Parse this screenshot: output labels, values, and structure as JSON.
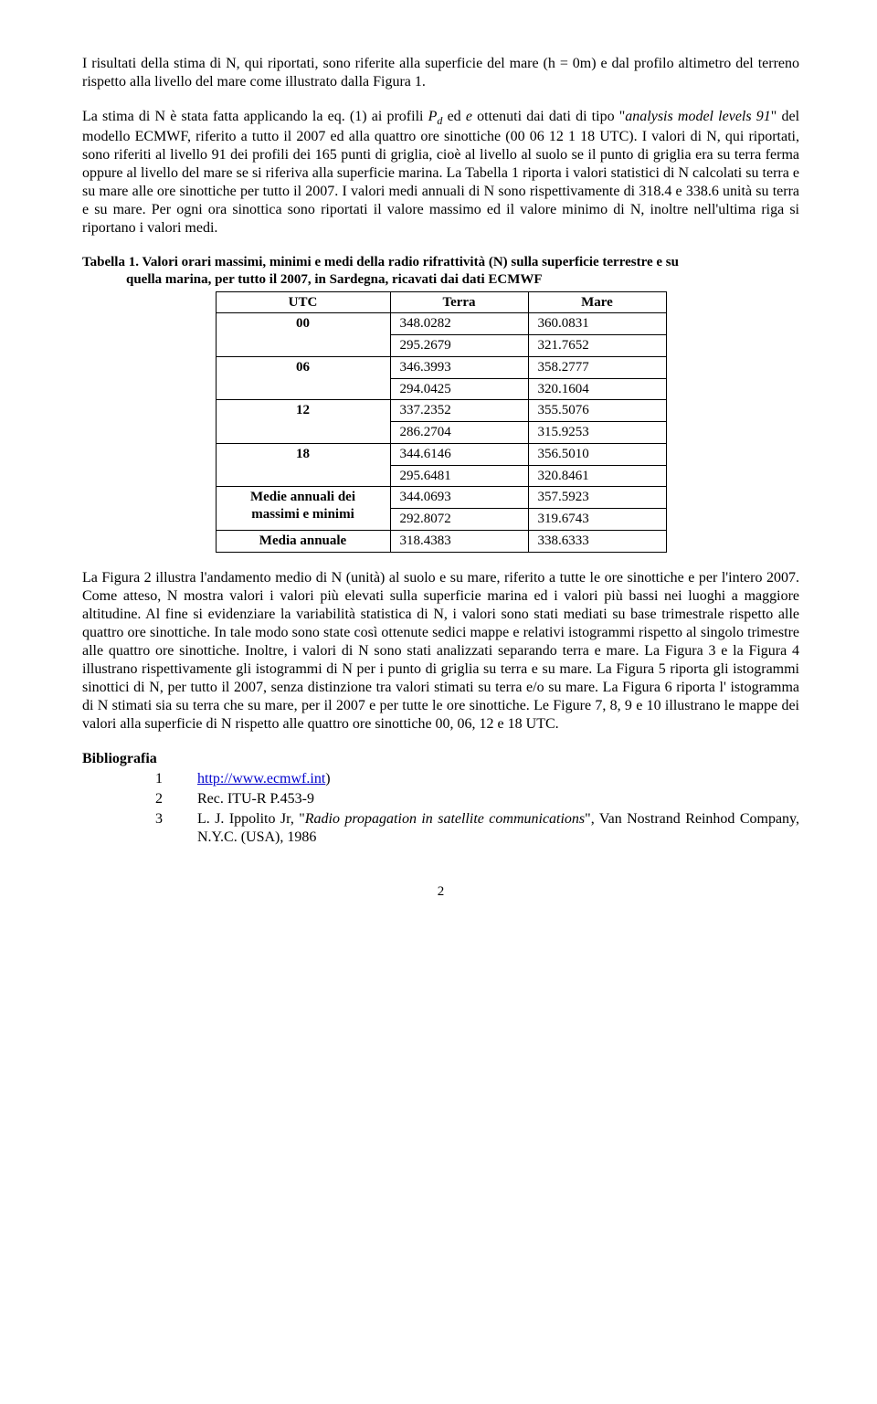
{
  "para1_a": "I risultati della stima di N, qui riportati, sono riferite alla superficie del mare (h = 0m) e dal profilo altimetro del terreno rispetto alla livello del mare come illustrato dalla Figura 1.",
  "para2_a": "La stima di N è stata fatta applicando la eq. (1) ai profili ",
  "para2_pd_p": "P",
  "para2_pd_d": "d",
  "para2_b": " ed ",
  "para2_e": "e",
  "para2_c": " ottenuti dai dati di tipo \"",
  "para2_it1": "analysis model levels 91",
  "para2_d": "\" del modello ECMWF, riferito a tutto il 2007 ed alla quattro ore sinottiche (00 06 12 1 18 UTC). I valori di N, qui riportati, sono riferiti al livello 91 dei profili dei 165 punti di griglia, cioè al livello al suolo se il punto di griglia era su terra ferma oppure al livello del mare se si riferiva alla superficie marina. La Tabella 1 riporta i valori statistici di N calcolati su terra e su mare alle ore sinottiche per tutto il 2007. I valori medi annuali di N sono rispettivamente di 318.4 e 338.6 unità su terra e su mare. Per ogni ora sinottica sono riportati il valore massimo ed il valore minimo di N, inoltre nell'ultima riga si riportano i valori medi.",
  "table_caption_line1": "Tabella 1. Valori orari massimi, minimi e medi della radio rifrattività (N) sulla superficie terrestre e su",
  "table_caption_line2": "quella marina, per  tutto il 2007, in Sardegna, ricavati dai dati ECMWF",
  "table": {
    "headers": {
      "utc": "UTC",
      "terra": "Terra",
      "mare": "Mare"
    },
    "rows": [
      {
        "utc": "00",
        "terra_max": "348.0282",
        "terra_min": "295.2679",
        "mare_max": "360.0831",
        "mare_min": "321.7652"
      },
      {
        "utc": "06",
        "terra_max": "346.3993",
        "terra_min": "294.0425",
        "mare_max": "358.2777",
        "mare_min": "320.1604"
      },
      {
        "utc": "12",
        "terra_max": "337.2352",
        "terra_min": "286.2704",
        "mare_max": "355.5076",
        "mare_min": "315.9253"
      },
      {
        "utc": "18",
        "terra_max": "344.6146",
        "terra_min": "295.6481",
        "mare_max": "356.5010",
        "mare_min": "320.8461"
      }
    ],
    "medie_label_a": "Medie annuali dei",
    "medie_label_b": "massimi e minimi",
    "medie_terra_max": "344.0693",
    "medie_terra_min": "292.8072",
    "medie_mare_max": "357.5923",
    "medie_mare_min": "319.6743",
    "media_annuale_label": "Media annuale",
    "media_annuale_terra": "318.4383",
    "media_annuale_mare": "338.6333"
  },
  "para3": "La Figura 2 illustra l'andamento medio di N (unità) al suolo e su mare,  riferito a tutte le ore sinottiche e per l'intero 2007. Come atteso, N mostra valori i valori più elevati sulla superficie marina ed i valori più bassi nei luoghi a maggiore altitudine. Al fine si evidenziare la variabilità statistica di  N, i valori sono stati mediati su base trimestrale rispetto alle quattro ore sinottiche. In tale modo sono state così ottenute sedici mappe e relativi istogrammi rispetto al singolo trimestre alle quattro ore sinottiche. Inoltre, i valori di N sono stati analizzati separando terra e mare. La Figura 3 e la Figura 4 illustrano rispettivamente gli istogrammi di N per i punto di griglia su terra e su mare. La Figura 5 riporta gli istogrammi sinottici di N, per tutto il 2007, senza distinzione tra valori stimati su terra e/o su mare. La Figura 6 riporta l' istogramma di N  stimati sia su terra che su mare, per il 2007 e per tutte le ore sinottiche. Le Figure 7, 8, 9 e 10 illustrano le mappe dei valori alla superficie di  N rispetto alle quattro ore sinottiche 00, 06, 12 e 18 UTC.",
  "bib_heading": "Bibliografia",
  "bib": [
    {
      "link_text": "http://www.ecmwf.int",
      "suffix": ")"
    },
    {
      "text": "Rec. ITU-R P.453-9"
    },
    {
      "prefix": "L. J. Ippolito Jr, \"",
      "italic": "Radio propagation in satellite communications",
      "suffix": "\", Van Nostrand Reinhod Company, N.Y.C. (USA), 1986"
    }
  ],
  "pagenum": "2"
}
